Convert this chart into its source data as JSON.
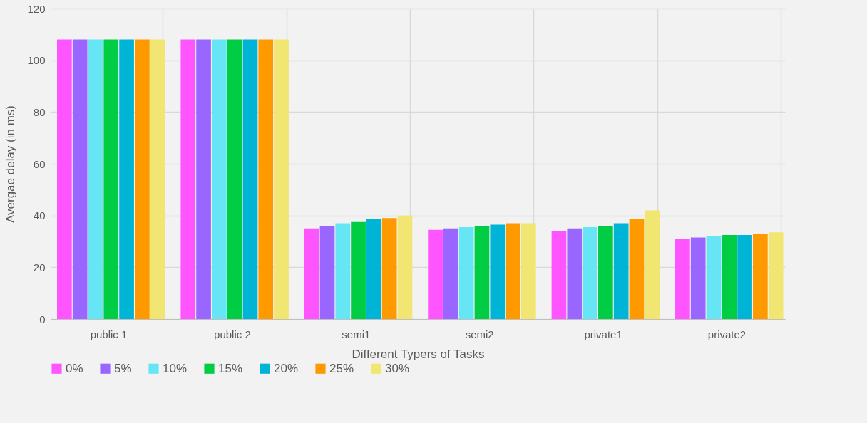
{
  "chart_data": {
    "type": "bar",
    "xlabel": "Different Typers of Tasks",
    "ylabel": "Avergae delay (in ms)",
    "categories": [
      "public 1",
      "public 2",
      "semi1",
      "semi2",
      "private1",
      "private2"
    ],
    "series": [
      {
        "name": "0%",
        "color": "#ff55ff",
        "values": [
          108,
          108,
          35,
          34.5,
          34,
          31
        ]
      },
      {
        "name": "5%",
        "color": "#9966ff",
        "values": [
          108,
          108,
          36,
          35,
          35,
          31.5
        ]
      },
      {
        "name": "10%",
        "color": "#66e6f5",
        "values": [
          108,
          108,
          37,
          35.5,
          35.5,
          32
        ]
      },
      {
        "name": "15%",
        "color": "#00cc44",
        "values": [
          108,
          108,
          37.5,
          36,
          36,
          32.5
        ]
      },
      {
        "name": "20%",
        "color": "#00b4d6",
        "values": [
          108,
          108,
          38.5,
          36.5,
          37,
          32.5
        ]
      },
      {
        "name": "25%",
        "color": "#ff9900",
        "values": [
          108,
          108,
          39,
          37,
          38.5,
          33
        ]
      },
      {
        "name": "30%",
        "color": "#f2e672",
        "values": [
          108,
          108,
          40,
          37,
          42,
          33.5
        ]
      }
    ],
    "ylim": [
      0,
      120
    ],
    "yticks": [
      0,
      20,
      40,
      60,
      80,
      100,
      120
    ],
    "grid": true,
    "legend": "bottom"
  }
}
